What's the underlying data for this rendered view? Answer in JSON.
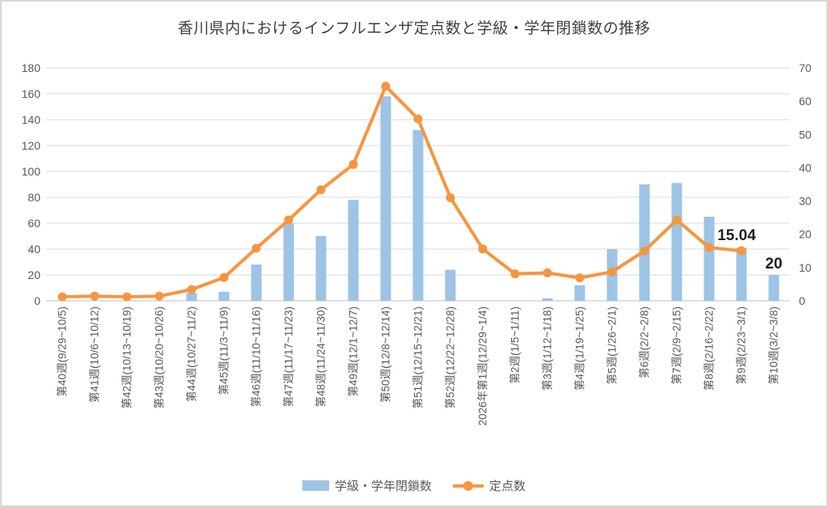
{
  "title": "香川県内におけるインフルエンザ定点数と学級・学年閉鎖数の推移",
  "colors": {
    "bar": "#9DC3E6",
    "line": "#F7953F",
    "grid": "#D9D9D9",
    "axis_line": "#BFBFBF",
    "tick_label": "#595959",
    "data_label": "#1f1f1f"
  },
  "legend": {
    "items": [
      {
        "label": "学級・学年閉鎖数",
        "marker": "bar"
      },
      {
        "label": "定点数",
        "marker": "line-dot"
      }
    ]
  },
  "chart_data": {
    "type": "combo-bar-line",
    "title": "香川県内におけるインフルエンザ定点数と学級・学年閉鎖数の推移",
    "categories": [
      "第40週(9/29~10/5)",
      "第41週(10/6~10/12)",
      "第42週(10/13~10/19)",
      "第43週(10/20~10/26)",
      "第44週(10/27~11/2)",
      "第45週(11/3~11/9)",
      "第46週(11/10~11/16)",
      "第47週(11/17~11/23)",
      "第48週(11/24~11/30)",
      "第49週(12/1~12/7)",
      "第50週(12/8~12/14)",
      "第51週(12/15~12/21)",
      "第52週(12/22~12/28)",
      "2026年第1週(12/29~1/4)",
      "第2週(1/5~1/11)",
      "第3週(1/12~1/18)",
      "第4週(1/19~1/25)",
      "第5週(1/26~2/1)",
      "第6週(2/2~2/8)",
      "第7週(2/9~2/15)",
      "第8週(2/16~2/22)",
      "第9週(2/23~3/1)",
      "第10週(3/2~3/8)"
    ],
    "series": [
      {
        "name": "学級・学年閉鎖数",
        "type": "bar",
        "axis": "left",
        "values": [
          0,
          0,
          0,
          0,
          6,
          7,
          28,
          60,
          50,
          78,
          158,
          132,
          24,
          0,
          0,
          2,
          12,
          40,
          90,
          91,
          65,
          41,
          20
        ]
      },
      {
        "name": "定点数",
        "type": "line",
        "axis": "right",
        "values": [
          1.2,
          1.4,
          1.2,
          1.4,
          3.4,
          7.0,
          15.8,
          24.3,
          33.4,
          41.0,
          64.5,
          54.7,
          31.0,
          15.6,
          8.1,
          8.4,
          6.9,
          8.7,
          15.0,
          24.3,
          16.0,
          15.04,
          null
        ]
      }
    ],
    "left_axis": {
      "min": 0,
      "max": 180,
      "step": 20,
      "ticks": [
        "0",
        "20",
        "40",
        "60",
        "80",
        "100",
        "120",
        "140",
        "160",
        "180"
      ]
    },
    "right_axis": {
      "min": 0,
      "max": 70,
      "step": 10,
      "ticks": [
        "0",
        "10",
        "20",
        "30",
        "40",
        "50",
        "60",
        "70"
      ]
    },
    "annotations": [
      {
        "text": "15.04",
        "series": "定点数",
        "category_index": 21
      },
      {
        "text": "20",
        "series": "学級・学年閉鎖数",
        "category_index": 22
      }
    ],
    "grid": "horizontal-only",
    "legend_position": "bottom"
  }
}
